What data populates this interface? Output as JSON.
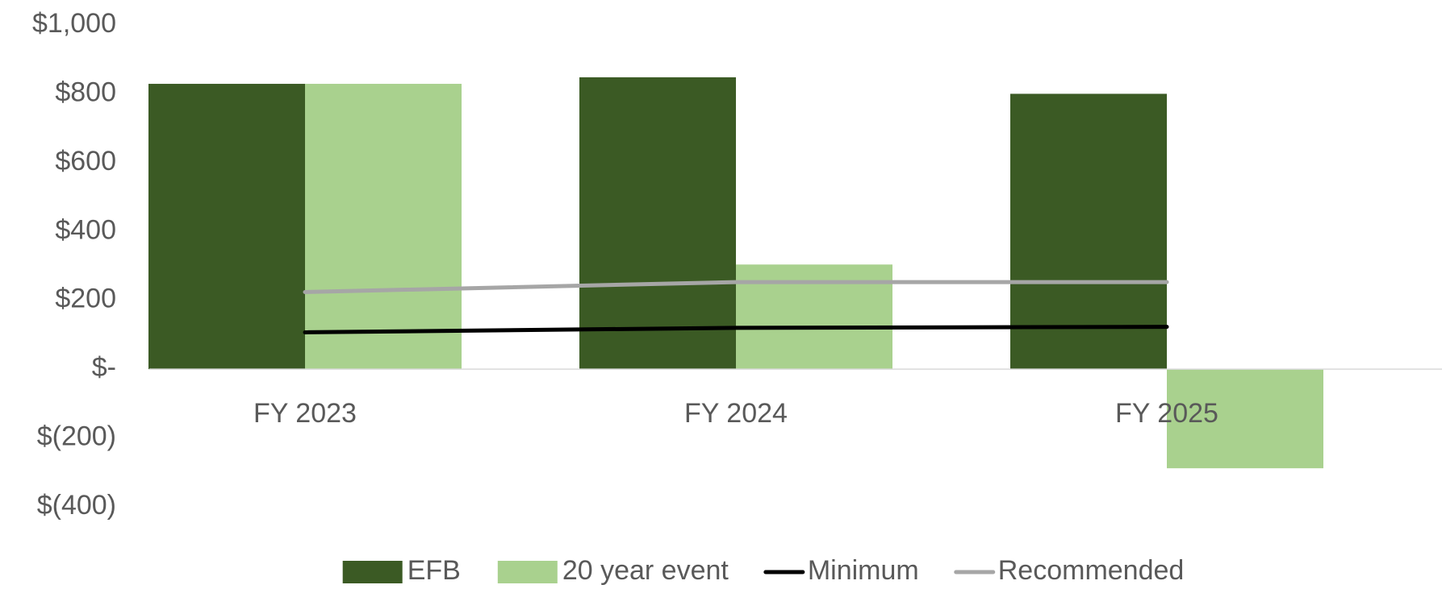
{
  "chart_data": {
    "type": "bar",
    "categories": [
      "FY 2023",
      "FY 2024",
      "FY 2025"
    ],
    "series": [
      {
        "name": "EFB",
        "type": "bar",
        "color": "#3b5a24",
        "values": [
          829,
          848,
          800
        ]
      },
      {
        "name": "20 year event",
        "type": "bar",
        "color": "#a9d18e",
        "values": [
          829,
          304,
          -288
        ]
      },
      {
        "name": "Minimum",
        "type": "line",
        "color": "#000000",
        "values": [
          107,
          120,
          123
        ]
      },
      {
        "name": "Recommended",
        "type": "line",
        "color": "#a6a6a6",
        "values": [
          224,
          253,
          253
        ]
      }
    ],
    "ylim": [
      -400,
      1000
    ],
    "yticks": [
      {
        "value": 1000,
        "label": "$1,000"
      },
      {
        "value": 800,
        "label": "$800"
      },
      {
        "value": 600,
        "label": "$600"
      },
      {
        "value": 400,
        "label": "$400"
      },
      {
        "value": 200,
        "label": "$200"
      },
      {
        "value": 0,
        "label": "$-"
      },
      {
        "value": -200,
        "label": "$(200)"
      },
      {
        "value": -400,
        "label": "$(400)"
      }
    ],
    "grid": false,
    "legend": "bottom"
  }
}
